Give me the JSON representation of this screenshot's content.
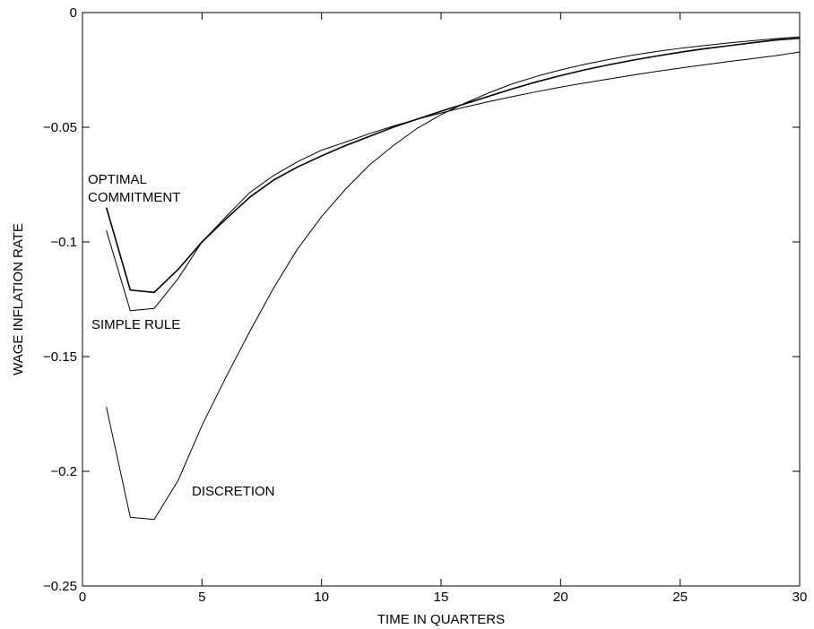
{
  "chart_data": {
    "type": "line",
    "title": "",
    "xlabel": "TIME IN QUARTERS",
    "ylabel": "WAGE INFLATION RATE",
    "xlim": [
      0,
      30
    ],
    "ylim": [
      -0.25,
      0
    ],
    "xticks": [
      0,
      5,
      10,
      15,
      20,
      25,
      30
    ],
    "yticks": [
      -0.25,
      -0.2,
      -0.15,
      -0.1,
      -0.05,
      0
    ],
    "xtick_labels": [
      "0",
      "5",
      "10",
      "15",
      "20",
      "25",
      "30"
    ],
    "ytick_labels": [
      "−0.25",
      "−0.2",
      "−0.15",
      "−0.1",
      "−0.05",
      "0"
    ],
    "grid": false,
    "legend": "none",
    "line_color": "#000000",
    "series": [
      {
        "name": "OPTIMAL COMMITMENT",
        "x": [
          1,
          2,
          3,
          4,
          5,
          6,
          7,
          8,
          9,
          10,
          11,
          12,
          13,
          14,
          15,
          16,
          17,
          18,
          19,
          20,
          21,
          22,
          23,
          24,
          25,
          26,
          27,
          28,
          29,
          30
        ],
        "y": [
          -0.085,
          -0.121,
          -0.122,
          -0.112,
          -0.1,
          -0.09,
          -0.0805,
          -0.073,
          -0.0673,
          -0.0625,
          -0.058,
          -0.054,
          -0.05,
          -0.0465,
          -0.043,
          -0.0398,
          -0.0365,
          -0.0332,
          -0.0302,
          -0.0275,
          -0.025,
          -0.0228,
          -0.0208,
          -0.019,
          -0.0173,
          -0.0158,
          -0.0145,
          -0.0132,
          -0.012,
          -0.0112
        ]
      },
      {
        "name": "SIMPLE RULE",
        "x": [
          1,
          2,
          3,
          4,
          5,
          6,
          7,
          8,
          9,
          10,
          11,
          12,
          13,
          14,
          15,
          16,
          17,
          18,
          19,
          20,
          21,
          22,
          23,
          24,
          25,
          26,
          27,
          28,
          29,
          30
        ],
        "y": [
          -0.095,
          -0.13,
          -0.129,
          -0.116,
          -0.1,
          -0.089,
          -0.0785,
          -0.071,
          -0.065,
          -0.06,
          -0.0565,
          -0.0528,
          -0.0495,
          -0.0465,
          -0.0438,
          -0.0412,
          -0.0388,
          -0.0366,
          -0.0345,
          -0.0325,
          -0.0307,
          -0.029,
          -0.0273,
          -0.0257,
          -0.0242,
          -0.0228,
          -0.0214,
          -0.0201,
          -0.0188,
          -0.0172
        ]
      },
      {
        "name": "DISCRETION",
        "x": [
          1,
          2,
          3,
          4,
          5,
          6,
          7,
          8,
          9,
          10,
          11,
          12,
          13,
          14,
          15,
          16,
          17,
          18,
          19,
          20,
          21,
          22,
          23,
          24,
          25,
          26,
          27,
          28,
          29,
          30
        ],
        "y": [
          -0.172,
          -0.22,
          -0.221,
          -0.204,
          -0.18,
          -0.159,
          -0.139,
          -0.12,
          -0.103,
          -0.089,
          -0.077,
          -0.0665,
          -0.058,
          -0.0505,
          -0.0445,
          -0.0395,
          -0.035,
          -0.031,
          -0.0278,
          -0.025,
          -0.0226,
          -0.0205,
          -0.0186,
          -0.017,
          -0.0156,
          -0.0144,
          -0.0133,
          -0.0123,
          -0.0114,
          -0.0106
        ]
      }
    ],
    "annotations": [
      {
        "name": "optimal-commitment",
        "lines": [
          "OPTIMAL",
          "COMMITMENT"
        ]
      },
      {
        "name": "simple-rule",
        "lines": [
          "SIMPLE RULE"
        ]
      },
      {
        "name": "discretion",
        "lines": [
          "DISCRETION"
        ]
      }
    ]
  }
}
